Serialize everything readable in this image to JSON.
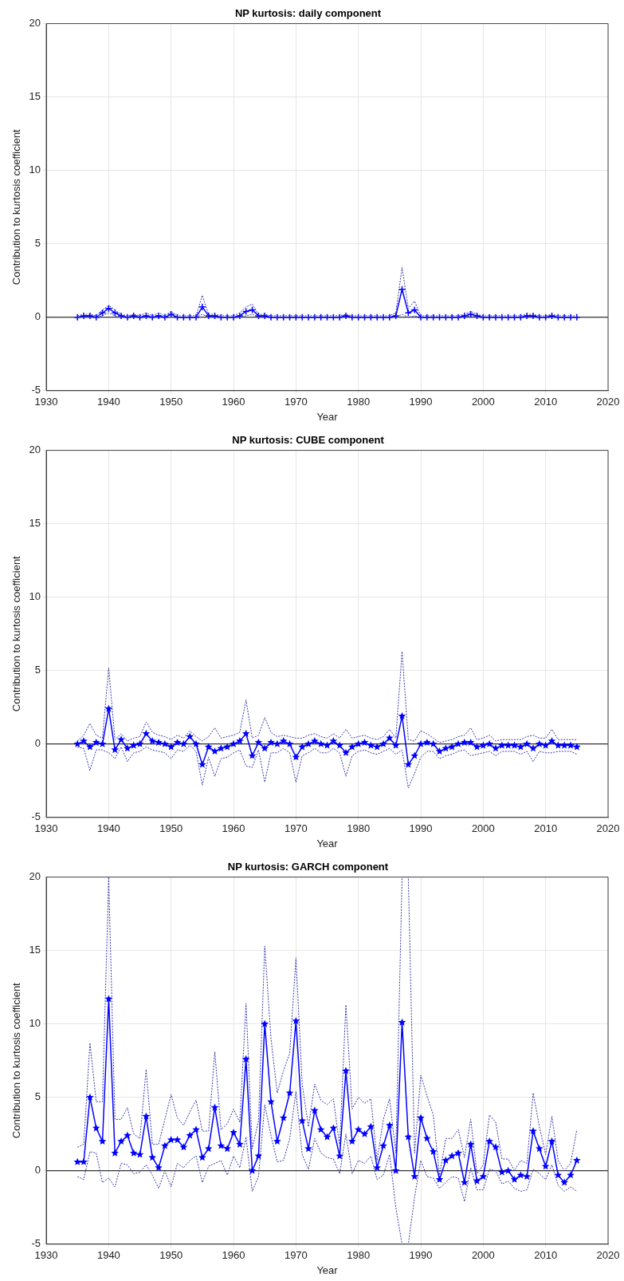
{
  "chart_data": [
    {
      "type": "line",
      "title": "NP kurtosis: daily component",
      "xlabel": "Year",
      "ylabel": "Contribution to kurtosis coefficient",
      "xlim": [
        1930,
        2020
      ],
      "xticks": [
        1930,
        1940,
        1950,
        1960,
        1970,
        1980,
        1990,
        2000,
        2010,
        2020
      ],
      "ylim": [
        -5,
        20
      ],
      "yticks": [
        -5,
        0,
        5,
        10,
        15,
        20
      ],
      "grid": true,
      "ref_lines": [
        {
          "axis": "y",
          "value": 0,
          "color": "#000000"
        }
      ],
      "x": [
        1935,
        1936,
        1937,
        1938,
        1939,
        1940,
        1941,
        1942,
        1943,
        1944,
        1945,
        1946,
        1947,
        1948,
        1949,
        1950,
        1951,
        1952,
        1953,
        1954,
        1955,
        1956,
        1957,
        1958,
        1959,
        1960,
        1961,
        1962,
        1963,
        1964,
        1965,
        1966,
        1967,
        1968,
        1969,
        1970,
        1971,
        1972,
        1973,
        1974,
        1975,
        1976,
        1977,
        1978,
        1979,
        1980,
        1981,
        1982,
        1983,
        1984,
        1985,
        1986,
        1987,
        1988,
        1989,
        1990,
        1991,
        1992,
        1993,
        1994,
        1995,
        1996,
        1997,
        1998,
        1999,
        2000,
        2001,
        2002,
        2003,
        2004,
        2005,
        2006,
        2007,
        2008,
        2009,
        2010,
        2011,
        2012,
        2013,
        2014,
        2015
      ],
      "series": [
        {
          "color": "#3a3aa8",
          "marker": "none",
          "line_style": "dotted",
          "values": [
            0.1,
            0.2,
            0.2,
            0.1,
            0.5,
            0.8,
            0.5,
            0.2,
            0.1,
            0.2,
            0.1,
            0.3,
            0.1,
            0.3,
            0.1,
            0.4,
            0.1,
            0.1,
            0.1,
            0.1,
            1.5,
            0.2,
            0.2,
            0.1,
            0.1,
            0.1,
            0.3,
            0.7,
            0.9,
            0.2,
            0.2,
            0.1,
            0.1,
            0.1,
            0.1,
            0.1,
            0.1,
            0.1,
            0.1,
            0.1,
            0.1,
            0.1,
            0.1,
            0.2,
            0.1,
            0.1,
            0.1,
            0.1,
            0.1,
            0.1,
            0.1,
            0.3,
            3.4,
            0.6,
            1.1,
            0.1,
            0.1,
            0.1,
            0.1,
            0.1,
            0.1,
            0.1,
            0.2,
            0.4,
            0.2,
            0.1,
            0.1,
            0.1,
            0.1,
            0.1,
            0.1,
            0.1,
            0.2,
            0.2,
            0.1,
            0.1,
            0.2,
            0.1,
            0.1,
            0.1,
            0.1
          ]
        },
        {
          "color": "#3a3aa8",
          "marker": "none",
          "line_style": "dotted",
          "values": [
            0,
            0,
            0,
            0,
            0.1,
            0.3,
            0.1,
            0,
            0,
            0,
            0,
            0,
            0,
            0,
            0,
            0,
            0,
            0,
            0,
            0,
            0.2,
            0,
            0,
            0,
            0,
            0,
            0,
            0.1,
            0.2,
            0,
            0,
            0,
            0,
            0,
            0,
            0,
            0,
            0,
            0,
            0,
            0,
            0,
            0,
            0,
            0,
            0,
            0,
            0,
            0,
            0,
            0,
            0,
            0.2,
            0,
            0.1,
            0,
            0,
            0,
            0,
            0,
            0,
            0,
            0,
            0.1,
            0,
            0,
            0,
            0,
            0,
            0,
            0,
            0,
            0,
            0,
            0,
            0,
            0,
            0,
            0,
            0,
            0
          ]
        },
        {
          "color": "#0000ff",
          "marker": "cross",
          "line_style": "solid",
          "values": [
            0,
            0.1,
            0.1,
            0,
            0.3,
            0.6,
            0.3,
            0.1,
            0,
            0.1,
            0,
            0.1,
            0,
            0.1,
            0,
            0.2,
            0,
            0,
            0,
            0,
            0.7,
            0.1,
            0.1,
            0,
            0,
            0,
            0.1,
            0.4,
            0.5,
            0.1,
            0.1,
            0,
            0,
            0,
            0,
            0,
            0,
            0,
            0,
            0,
            0,
            0,
            0,
            0.1,
            0,
            0,
            0,
            0,
            0,
            0,
            0,
            0.1,
            1.9,
            0.3,
            0.5,
            0,
            0,
            0,
            0,
            0,
            0,
            0,
            0.1,
            0.2,
            0.1,
            0,
            0,
            0,
            0,
            0,
            0,
            0,
            0.1,
            0.1,
            0,
            0,
            0.1,
            0,
            0,
            0,
            0
          ]
        }
      ]
    },
    {
      "type": "line",
      "title": "NP kurtosis: CUBE component",
      "xlabel": "Year",
      "ylabel": "Contribution to kurtosis coefficient",
      "xlim": [
        1930,
        2020
      ],
      "xticks": [
        1930,
        1940,
        1950,
        1960,
        1970,
        1980,
        1990,
        2000,
        2010,
        2020
      ],
      "ylim": [
        -5,
        20
      ],
      "yticks": [
        -5,
        0,
        5,
        10,
        15,
        20
      ],
      "grid": true,
      "ref_lines": [
        {
          "axis": "y",
          "value": 0,
          "color": "#000000"
        }
      ],
      "x": [
        1935,
        1936,
        1937,
        1938,
        1939,
        1940,
        1941,
        1942,
        1943,
        1944,
        1945,
        1946,
        1947,
        1948,
        1949,
        1950,
        1951,
        1952,
        1953,
        1954,
        1955,
        1956,
        1957,
        1958,
        1959,
        1960,
        1961,
        1962,
        1963,
        1964,
        1965,
        1966,
        1967,
        1968,
        1969,
        1970,
        1971,
        1972,
        1973,
        1974,
        1975,
        1976,
        1977,
        1978,
        1979,
        1980,
        1981,
        1982,
        1983,
        1984,
        1985,
        1986,
        1987,
        1988,
        1989,
        1990,
        1991,
        1992,
        1993,
        1994,
        1995,
        1996,
        1997,
        1998,
        1999,
        2000,
        2001,
        2002,
        2003,
        2004,
        2005,
        2006,
        2007,
        2008,
        2009,
        2010,
        2011,
        2012,
        2013,
        2014,
        2015
      ],
      "series": [
        {
          "color": "#3a3aa8",
          "marker": "none",
          "line_style": "dotted",
          "values": [
            0.2,
            0.6,
            1.4,
            0.6,
            0.4,
            5.2,
            0.3,
            0.7,
            0.2,
            0.4,
            0.5,
            1.5,
            0.8,
            0.6,
            0.5,
            0.3,
            0.6,
            0.4,
            0.9,
            0.5,
            0.2,
            0.5,
            1.1,
            0.4,
            0.5,
            0.6,
            0.8,
            3.0,
            0.4,
            0.6,
            1.8,
            0.8,
            0.5,
            0.6,
            0.5,
            0.4,
            0.4,
            0.6,
            0.7,
            0.5,
            0.4,
            0.7,
            0.4,
            1.0,
            0.4,
            0.5,
            0.6,
            0.4,
            0.3,
            0.5,
            1.0,
            0.4,
            6.3,
            0.3,
            0.2,
            0.9,
            0.7,
            0.4,
            0.1,
            0.2,
            0.3,
            0.5,
            0.6,
            1.1,
            0.3,
            0.4,
            0.6,
            0.2,
            0.3,
            0.3,
            0.3,
            0.3,
            0.5,
            0.6,
            0.4,
            0.4,
            1.0,
            0.3,
            0.3,
            0.3,
            0.3
          ]
        },
        {
          "color": "#3a3aa8",
          "marker": "none",
          "line_style": "dotted",
          "values": [
            -0.2,
            -0.3,
            -1.8,
            -0.4,
            -0.4,
            -0.6,
            -1.0,
            -0.2,
            -1.2,
            -0.6,
            -0.5,
            -0.2,
            -0.4,
            -0.5,
            -0.6,
            -1.0,
            -0.4,
            -0.5,
            -0.1,
            -0.5,
            -2.8,
            -0.9,
            -2.2,
            -1.0,
            -0.9,
            -0.6,
            -0.4,
            -1.5,
            -1.6,
            -0.4,
            -2.6,
            -0.6,
            -0.6,
            -0.3,
            -0.6,
            -2.6,
            -0.8,
            -0.6,
            -0.3,
            -0.6,
            -0.6,
            -0.3,
            -0.6,
            -2.2,
            -0.8,
            -0.5,
            -0.4,
            -0.6,
            -0.7,
            -0.5,
            -0.3,
            -0.7,
            -0.4,
            -3.0,
            -2.0,
            -0.9,
            -0.5,
            -0.5,
            -1.0,
            -0.8,
            -0.7,
            -0.5,
            -0.4,
            -0.8,
            -0.7,
            -0.6,
            -0.5,
            -0.8,
            -0.5,
            -0.5,
            -0.5,
            -0.7,
            -0.5,
            -1.2,
            -0.5,
            -0.6,
            -0.6,
            -0.5,
            -0.5,
            -0.5,
            -0.7
          ]
        },
        {
          "color": "#0000ff",
          "marker": "star",
          "line_style": "solid",
          "values": [
            0,
            0.2,
            -0.2,
            0.1,
            0,
            2.4,
            -0.4,
            0.3,
            -0.3,
            -0.1,
            0,
            0.7,
            0.2,
            0.1,
            0,
            -0.2,
            0.1,
            0,
            0.5,
            0,
            -1.4,
            -0.2,
            -0.5,
            -0.3,
            -0.2,
            0,
            0.2,
            0.7,
            -0.8,
            0.1,
            -0.3,
            0.1,
            0,
            0.2,
            0,
            -0.9,
            -0.2,
            0,
            0.2,
            0,
            -0.1,
            0.2,
            -0.1,
            -0.6,
            -0.2,
            0,
            0.1,
            -0.1,
            -0.2,
            0,
            0.4,
            -0.1,
            1.9,
            -1.4,
            -0.8,
            0,
            0.1,
            0,
            -0.5,
            -0.3,
            -0.2,
            0,
            0.1,
            0.1,
            -0.2,
            -0.1,
            0,
            -0.3,
            -0.1,
            -0.1,
            -0.1,
            -0.2,
            0,
            -0.3,
            0,
            -0.1,
            0.2,
            -0.1,
            -0.1,
            -0.1,
            -0.2
          ]
        }
      ]
    },
    {
      "type": "line",
      "title": "NP kurtosis: GARCH component",
      "xlabel": "Year",
      "ylabel": "Contribution to kurtosis coefficient",
      "xlim": [
        1930,
        2020
      ],
      "xticks": [
        1930,
        1940,
        1950,
        1960,
        1970,
        1980,
        1990,
        2000,
        2010,
        2020
      ],
      "ylim": [
        -5,
        20
      ],
      "yticks": [
        -5,
        0,
        5,
        10,
        15,
        20
      ],
      "grid": true,
      "ref_lines": [
        {
          "axis": "y",
          "value": 0,
          "color": "#000000"
        }
      ],
      "x": [
        1935,
        1936,
        1937,
        1938,
        1939,
        1940,
        1941,
        1942,
        1943,
        1944,
        1945,
        1946,
        1947,
        1948,
        1949,
        1950,
        1951,
        1952,
        1953,
        1954,
        1955,
        1956,
        1957,
        1958,
        1959,
        1960,
        1961,
        1962,
        1963,
        1964,
        1965,
        1966,
        1967,
        1968,
        1969,
        1970,
        1971,
        1972,
        1973,
        1974,
        1975,
        1976,
        1977,
        1978,
        1979,
        1980,
        1981,
        1982,
        1983,
        1984,
        1985,
        1986,
        1987,
        1988,
        1989,
        1990,
        1991,
        1992,
        1993,
        1994,
        1995,
        1996,
        1997,
        1998,
        1999,
        2000,
        2001,
        2002,
        2003,
        2004,
        2005,
        2006,
        2007,
        2008,
        2009,
        2010,
        2011,
        2012,
        2013,
        2014,
        2015
      ],
      "series": [
        {
          "color": "#3a3aa8",
          "marker": "none",
          "line_style": "dotted",
          "values": [
            1.6,
            1.8,
            8.7,
            4.7,
            4.7,
            20,
            3.5,
            3.5,
            4.3,
            2.5,
            2.2,
            6.9,
            1.8,
            1.8,
            3.5,
            5.2,
            3.6,
            3.1,
            4.0,
            4.8,
            2.7,
            2.7,
            8.1,
            2.8,
            3.2,
            4.2,
            3.3,
            11.4,
            1.5,
            3.4,
            15.3,
            9.0,
            5.3,
            6.8,
            8.0,
            14.5,
            5.9,
            3.0,
            5.9,
            4.8,
            4.5,
            4.9,
            1.7,
            11.3,
            4.2,
            5.0,
            4.6,
            4.9,
            0.7,
            3.5,
            4.9,
            1.2,
            20,
            20,
            1.2,
            6.5,
            5.1,
            3.8,
            -0.3,
            2.2,
            2.2,
            2.8,
            0.9,
            3.5,
            -0.2,
            0.4,
            3.8,
            3.3,
            0.8,
            0.8,
            0.0,
            0.7,
            0.5,
            5.3,
            3.0,
            1.1,
            3.7,
            0.7,
            0.0,
            0.5,
            2.8
          ]
        },
        {
          "color": "#3a3aa8",
          "marker": "none",
          "line_style": "dotted",
          "values": [
            -0.4,
            -0.6,
            1.3,
            1.2,
            -0.8,
            -0.5,
            -1.1,
            0.5,
            0.4,
            -0.2,
            -0.1,
            0.4,
            -0.3,
            -1.2,
            0.0,
            -1.1,
            0.5,
            0.2,
            0.7,
            1.0,
            -0.8,
            0.3,
            0.5,
            0.7,
            -0.3,
            1.0,
            0.2,
            2.3,
            -1.4,
            -0.4,
            4.5,
            2.4,
            0.6,
            0.7,
            2.2,
            5.4,
            1.1,
            0.1,
            2.2,
            1.2,
            0.9,
            0.8,
            -0.2,
            2.5,
            -0.2,
            0.7,
            0.5,
            1.0,
            -0.6,
            -0.3,
            1.1,
            -2.5,
            -5,
            -5,
            -1.8,
            0.7,
            -0.4,
            -0.5,
            -1.2,
            -0.8,
            -0.4,
            -0.5,
            -2.1,
            0.2,
            -1.3,
            -1.3,
            0.1,
            0.0,
            -0.9,
            -0.7,
            -1.2,
            -1.4,
            -1.3,
            0.1,
            -0.2,
            -0.6,
            0.4,
            -1.0,
            -1.4,
            -1.1,
            -1.4
          ]
        },
        {
          "color": "#0000ff",
          "marker": "star",
          "line_style": "solid",
          "values": [
            0.6,
            0.6,
            5.0,
            2.9,
            2.0,
            11.7,
            1.2,
            2.0,
            2.4,
            1.2,
            1.1,
            3.7,
            0.9,
            0.2,
            1.7,
            2.1,
            2.1,
            1.6,
            2.4,
            2.8,
            0.9,
            1.5,
            4.3,
            1.7,
            1.5,
            2.6,
            1.8,
            7.6,
            0.0,
            1.0,
            10.0,
            4.7,
            2.0,
            3.6,
            5.3,
            10.2,
            3.4,
            1.5,
            4.1,
            2.8,
            2.3,
            2.9,
            1.0,
            6.8,
            2.0,
            2.8,
            2.5,
            3.0,
            0.2,
            1.7,
            3.1,
            0.0,
            10.1,
            2.3,
            -0.4,
            3.6,
            2.2,
            1.3,
            -0.6,
            0.7,
            1.0,
            1.2,
            -0.8,
            1.8,
            -0.7,
            -0.4,
            2.0,
            1.6,
            -0.1,
            0.0,
            -0.6,
            -0.3,
            -0.4,
            2.7,
            1.5,
            0.3,
            2.0,
            -0.3,
            -0.8,
            -0.3,
            0.7
          ]
        }
      ]
    }
  ]
}
